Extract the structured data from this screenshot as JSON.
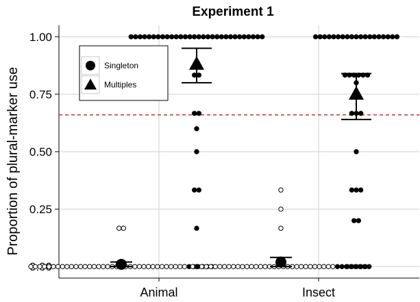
{
  "chart_data": {
    "type": "scatter",
    "title": "Experiment 1",
    "xlabel": "",
    "ylabel": "Proportion of plural-marker use",
    "categories": [
      "Animal",
      "Insect"
    ],
    "ylim": [
      -0.05,
      1.05
    ],
    "yticks": [
      0.0,
      0.25,
      0.5,
      0.75,
      1.0
    ],
    "ytick_labels": [
      "0.00",
      "0.25",
      "0.50",
      "0.75",
      "1.00"
    ],
    "grid": true,
    "reference_line": {
      "y": 0.66,
      "style": "dashed",
      "color": "#b03a3a"
    },
    "legend": {
      "position": "top-left",
      "entries": [
        {
          "label": "Singleton",
          "shape": "circle"
        },
        {
          "label": "Multiples",
          "shape": "triangle"
        }
      ]
    },
    "series": [
      {
        "name": "Singleton",
        "summary": [
          {
            "category": "Animal",
            "mean": 0.01,
            "ci_low": 0.0,
            "ci_high": 0.02
          },
          {
            "category": "Insect",
            "mean": 0.02,
            "ci_low": 0.0,
            "ci_high": 0.04
          }
        ],
        "points": [
          {
            "category": "Animal",
            "values": [
              {
                "y": 0.0,
                "count": 35,
                "filled": false
              },
              {
                "y": 0.0,
                "count": 6,
                "filled": true
              },
              {
                "y": 0.1667,
                "count": 2,
                "filled": false
              }
            ]
          },
          {
            "category": "Insect",
            "values": [
              {
                "y": 0.0,
                "count": 32,
                "filled": false
              },
              {
                "y": 0.0,
                "count": 8,
                "filled": true
              },
              {
                "y": 0.1667,
                "count": 1,
                "filled": false
              },
              {
                "y": 0.25,
                "count": 1,
                "filled": false
              },
              {
                "y": 0.3333,
                "count": 1,
                "filled": false
              }
            ]
          }
        ]
      },
      {
        "name": "Multiples",
        "summary": [
          {
            "category": "Animal",
            "mean": 0.88,
            "ci_low": 0.8,
            "ci_high": 0.95
          },
          {
            "category": "Insect",
            "mean": 0.75,
            "ci_low": 0.64,
            "ci_high": 0.84
          }
        ],
        "points": [
          {
            "category": "Animal",
            "values": [
              {
                "y": 1.0,
                "count": 30,
                "filled": true
              },
              {
                "y": 0.8333,
                "count": 2,
                "filled": true
              },
              {
                "y": 0.6667,
                "count": 2,
                "filled": true
              },
              {
                "y": 0.6,
                "count": 1,
                "filled": true
              },
              {
                "y": 0.5,
                "count": 1,
                "filled": true
              },
              {
                "y": 0.3333,
                "count": 2,
                "filled": true
              },
              {
                "y": 0.1667,
                "count": 1,
                "filled": true
              },
              {
                "y": 0.0,
                "count": 1,
                "filled": true
              }
            ]
          },
          {
            "category": "Insect",
            "values": [
              {
                "y": 1.0,
                "count": 19,
                "filled": true
              },
              {
                "y": 0.8333,
                "count": 6,
                "filled": true
              },
              {
                "y": 0.8,
                "count": 1,
                "filled": true
              },
              {
                "y": 0.6667,
                "count": 3,
                "filled": true
              },
              {
                "y": 0.5,
                "count": 1,
                "filled": true
              },
              {
                "y": 0.3333,
                "count": 3,
                "filled": true
              },
              {
                "y": 0.2,
                "count": 2,
                "filled": true
              },
              {
                "y": 0.0,
                "count": 5,
                "filled": true
              }
            ]
          }
        ]
      }
    ]
  }
}
